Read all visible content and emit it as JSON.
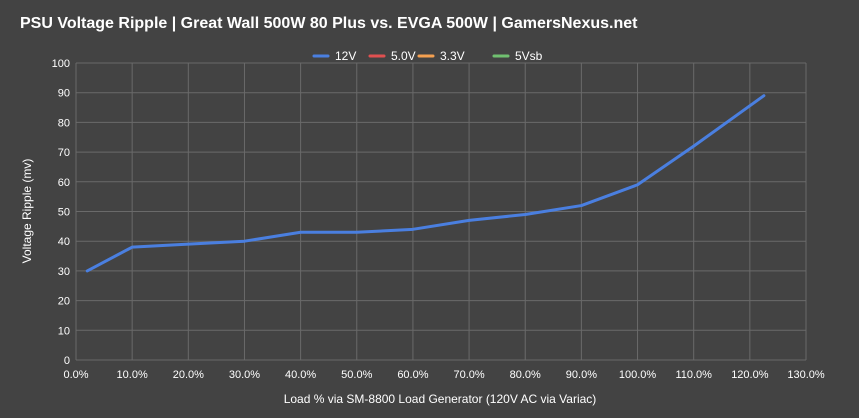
{
  "chart_data": {
    "type": "line",
    "title": "PSU Voltage Ripple | Great Wall 500W 80 Plus vs. EVGA 500W | GamersNexus.net",
    "xlabel": "Load % via SM-8800 Load Generator (120V AC via Variac)",
    "ylabel": "Voltage Ripple (mv)",
    "xlim": [
      0,
      130
    ],
    "ylim": [
      0,
      100
    ],
    "x_ticks": [
      0,
      10,
      20,
      30,
      40,
      50,
      60,
      70,
      80,
      90,
      100,
      110,
      120,
      130
    ],
    "x_tick_labels": [
      "0.0%",
      "10.0%",
      "20.0%",
      "30.0%",
      "40.0%",
      "50.0%",
      "60.0%",
      "70.0%",
      "80.0%",
      "90.0%",
      "100.0%",
      "110.0%",
      "120.0%",
      "130.0%"
    ],
    "y_ticks": [
      0,
      10,
      20,
      30,
      40,
      50,
      60,
      70,
      80,
      90,
      100
    ],
    "y_tick_labels": [
      "0",
      "10",
      "20",
      "30",
      "40",
      "50",
      "60",
      "70",
      "80",
      "90",
      "100"
    ],
    "grid": true,
    "legend_position": "top-center",
    "series": [
      {
        "name": "12V",
        "color": "#4a7fe0",
        "x": [
          2,
          10,
          20,
          30,
          40,
          50,
          60,
          70,
          80,
          90,
          100,
          110,
          122.5
        ],
        "values": [
          30,
          38,
          39,
          40,
          43,
          43,
          44,
          47,
          49,
          52,
          59,
          72,
          89
        ]
      },
      {
        "name": "5.0V",
        "color": "#e05050",
        "x": [],
        "values": []
      },
      {
        "name": "3.3V",
        "color": "#f5a050",
        "x": [],
        "values": []
      },
      {
        "name": "5Vsb",
        "color": "#70c070",
        "x": [],
        "values": []
      }
    ]
  }
}
